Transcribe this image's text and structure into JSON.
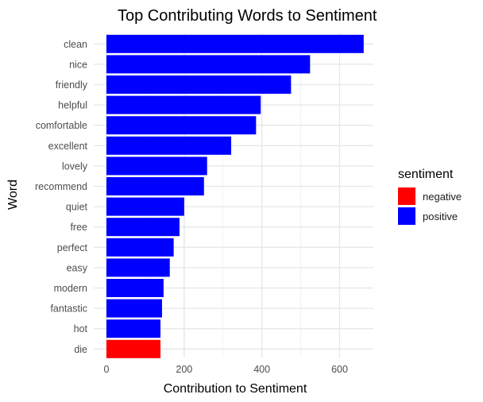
{
  "chart_data": {
    "type": "bar",
    "orientation": "horizontal",
    "title": "Top Contributing Words to Sentiment",
    "xlabel": "Contribution to Sentiment",
    "ylabel": "Word",
    "xlim": [
      0,
      670
    ],
    "xticks": [
      0,
      200,
      400,
      600
    ],
    "grid": true,
    "legend": {
      "title": "sentiment",
      "placement": "right",
      "entries": [
        {
          "name": "negative",
          "color": "#ff0000"
        },
        {
          "name": "positive",
          "color": "#0000ff"
        }
      ]
    },
    "categories": [
      "clean",
      "nice",
      "friendly",
      "helpful",
      "comfortable",
      "excellent",
      "lovely",
      "recommend",
      "quiet",
      "free",
      "perfect",
      "easy",
      "modern",
      "fantastic",
      "hot",
      "die"
    ],
    "values": [
      662,
      524,
      475,
      397,
      385,
      321,
      259,
      251,
      200,
      188,
      173,
      163,
      147,
      143,
      139,
      139
    ],
    "sentiment": [
      "positive",
      "positive",
      "positive",
      "positive",
      "positive",
      "positive",
      "positive",
      "positive",
      "positive",
      "positive",
      "positive",
      "positive",
      "positive",
      "positive",
      "positive",
      "negative"
    ]
  }
}
